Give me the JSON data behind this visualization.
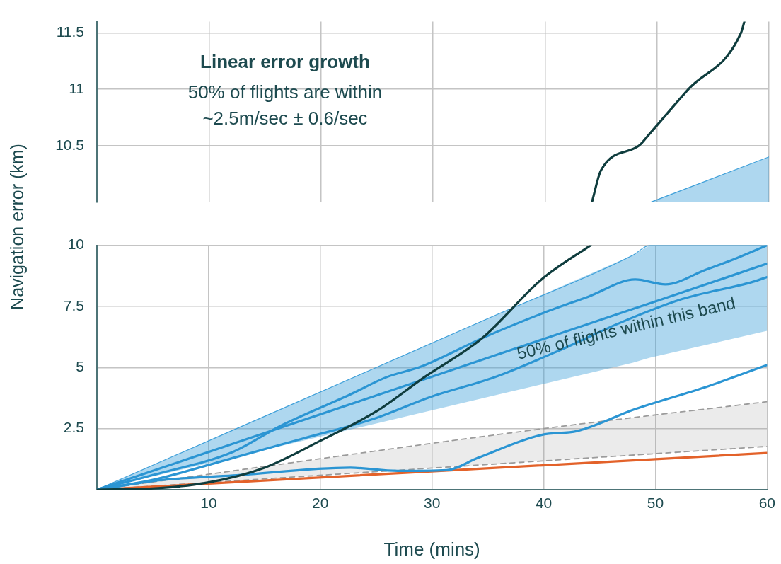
{
  "chart_data": [
    {
      "type": "line",
      "title": "Linear error growth",
      "subtitle": "50% of flights are within ~2.5m/sec ± 0.6/sec",
      "xlim": [
        0,
        60
      ],
      "xticks": [
        10,
        20,
        30,
        40,
        50,
        60
      ],
      "ylim": [
        10,
        11.6
      ],
      "yticks": [
        10.5,
        11,
        11.5
      ],
      "tick_labels": "y",
      "grid": true,
      "legend": false,
      "marker": "none",
      "line_style": "solid",
      "series": [
        {
          "color": "#3d9fd9",
          "x": [
            49.5,
            60
          ],
          "values": [
            10,
            10.4
          ],
          "lower": [
            10,
            10
          ],
          "upper": [
            10,
            10.4
          ]
        },
        {
          "color": "#0f3d3e",
          "x": [
            44.2,
            45,
            48.4,
            49.3,
            52.8,
            57.5,
            57.8
          ],
          "values": [
            10,
            10.28,
            10.5,
            10.6,
            11,
            11.5,
            11.6
          ]
        }
      ]
    },
    {
      "type": "line",
      "xlabel": "Time (mins)",
      "ylabel": "Navigation error (km)",
      "xlim": [
        0,
        60
      ],
      "xticks": [
        10,
        20,
        30,
        40,
        50,
        60
      ],
      "ylim": [
        0,
        10
      ],
      "yticks": [
        2.5,
        5,
        7.5,
        10
      ],
      "grid": true,
      "legend": false,
      "marker": "none",
      "line_style": "solid",
      "annotations": [
        "50% of flights within this band"
      ],
      "series": [
        {
          "color": "#9b9b9b",
          "line_style": "dashed",
          "x": [
            0,
            40,
            60
          ],
          "values": [
            0,
            2.5,
            3.6
          ],
          "lower": [
            0,
            1.18,
            1.77
          ],
          "upper": [
            0,
            2.5,
            3.6
          ]
        },
        {
          "color": "#9b9b9b",
          "line_style": "dashed",
          "x": [
            0,
            60
          ],
          "values": [
            0,
            1.77
          ]
        },
        {
          "color": "#e3622a",
          "x": [
            0,
            60
          ],
          "values": [
            0,
            1.5
          ]
        },
        {
          "color": "#3d9fd9",
          "x": [
            0,
            12,
            24,
            36,
            48,
            49.5,
            60
          ],
          "values": [
            0,
            2.4,
            4.8,
            7.2,
            9.6,
            10,
            10
          ],
          "lower": [
            0,
            1.3,
            2.6,
            3.9,
            5.2,
            5.4,
            6.5
          ],
          "upper": [
            0,
            2.4,
            4.8,
            7.2,
            9.6,
            10,
            10
          ]
        },
        {
          "color": "#2b95d3",
          "x": [
            0,
            5.9,
            12.2,
            22.7,
            26.9,
            31.3,
            34.1,
            39.8,
            43,
            48.2,
            54.5,
            60
          ],
          "values": [
            0,
            0.4,
            0.58,
            0.9,
            0.77,
            0.8,
            1.3,
            2.24,
            2.4,
            3.3,
            4.2,
            5.1
          ]
        },
        {
          "color": "#2b95d3",
          "x": [
            0,
            5,
            12.2,
            16.4,
            22.7,
            25.9,
            29.1,
            34.5,
            39.8,
            44,
            48.2,
            50.9,
            54.5,
            56.6,
            60
          ],
          "values": [
            0,
            0.6,
            1.55,
            2.6,
            3.9,
            4.6,
            5.05,
            6.2,
            7.2,
            7.9,
            8.6,
            8.4,
            9,
            9.35,
            10
          ]
        },
        {
          "color": "#2b95d3",
          "x": [
            0,
            5,
            12.2,
            18.5,
            24.8,
            29.9,
            35.6,
            41.9,
            46.7,
            52.4,
            58.7,
            60
          ],
          "values": [
            0,
            0.4,
            1.3,
            2.1,
            2.9,
            3.8,
            4.6,
            5.8,
            6.8,
            7.8,
            8.5,
            8.7
          ]
        },
        {
          "color": "#2b95d3",
          "x": [
            0,
            12,
            24,
            36,
            48,
            50,
            60
          ],
          "values": [
            0,
            1.85,
            3.7,
            5.55,
            7.4,
            7.7,
            9.25
          ]
        },
        {
          "color": "#0f3d3e",
          "x": [
            0,
            5,
            10,
            15,
            20,
            25,
            29.3,
            34.5,
            39.8,
            44.2
          ],
          "values": [
            0,
            0.05,
            0.3,
            0.9,
            2,
            3.2,
            4.6,
            6.2,
            8.6,
            10
          ]
        }
      ]
    }
  ]
}
